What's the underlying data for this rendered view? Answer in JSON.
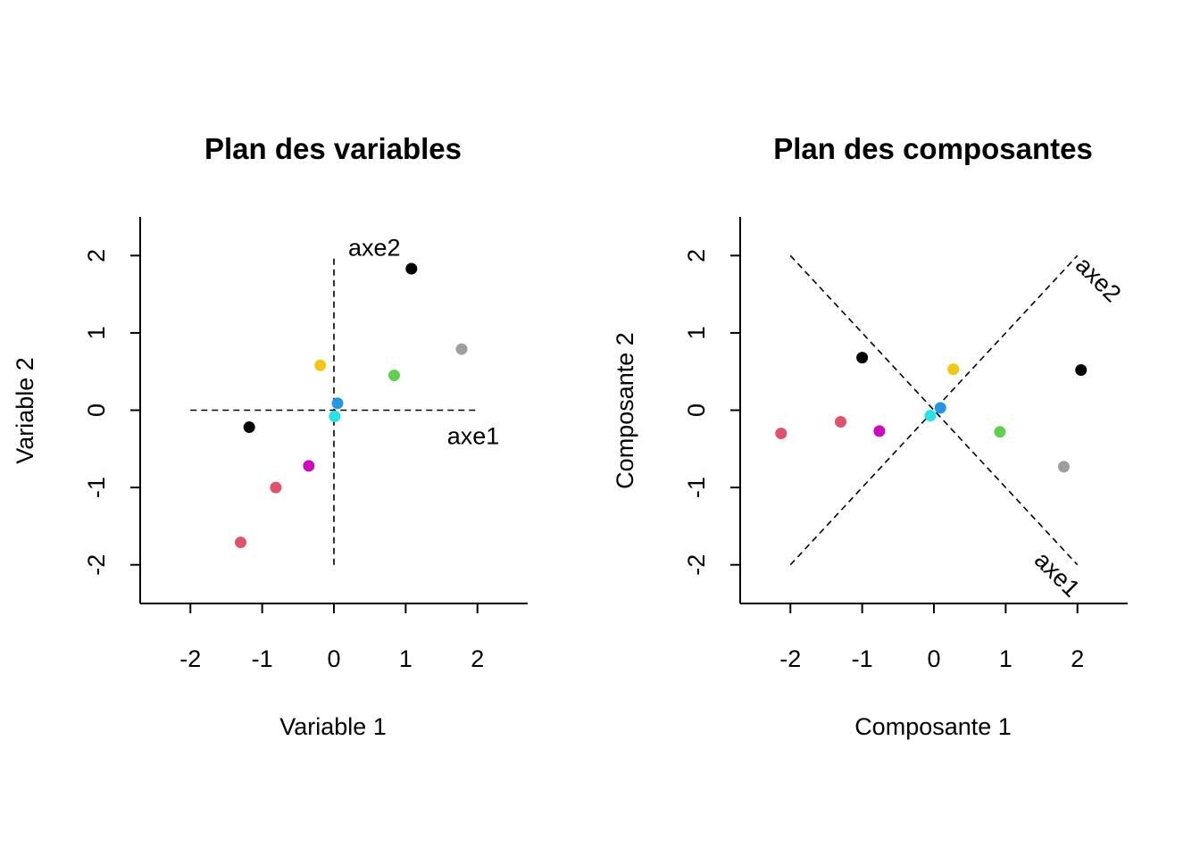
{
  "colors": {
    "black": "#000000",
    "red": "#DF536B",
    "green": "#61D04F",
    "blue": "#2297E6",
    "cyan": "#28E2E5",
    "magenta": "#CD0BBC",
    "yellow": "#F5C710",
    "gray": "#9E9E9E"
  },
  "chart_data": [
    {
      "type": "scatter",
      "title": "Plan des variables",
      "xlabel": "Variable 1",
      "ylabel": "Variable 2",
      "xlim": [
        -2.7,
        2.7
      ],
      "ylim": [
        -2.5,
        2.5
      ],
      "xticks": [
        -2,
        -1,
        0,
        1,
        2
      ],
      "yticks": [
        -2,
        -1,
        0,
        1,
        2
      ],
      "grid": false,
      "points": [
        {
          "x": 1.08,
          "y": 1.83,
          "color": "black"
        },
        {
          "x": 1.78,
          "y": 0.79,
          "color": "gray"
        },
        {
          "x": -0.19,
          "y": 0.58,
          "color": "yellow"
        },
        {
          "x": 0.84,
          "y": 0.45,
          "color": "green"
        },
        {
          "x": 0.05,
          "y": 0.09,
          "color": "blue"
        },
        {
          "x": 0.01,
          "y": -0.08,
          "color": "cyan"
        },
        {
          "x": -1.18,
          "y": -0.22,
          "color": "black"
        },
        {
          "x": -0.35,
          "y": -0.72,
          "color": "magenta"
        },
        {
          "x": -0.81,
          "y": -1.0,
          "color": "red"
        },
        {
          "x": -1.3,
          "y": -1.71,
          "color": "red"
        }
      ],
      "axes_lines": [
        {
          "label": "axe1",
          "from": [
            -2,
            0
          ],
          "to": [
            2,
            0
          ]
        },
        {
          "label": "axe2",
          "from": [
            0,
            -2
          ],
          "to": [
            0,
            2
          ]
        }
      ]
    },
    {
      "type": "scatter",
      "title": "Plan des composantes",
      "xlabel": "Composante 1",
      "ylabel": "Composante 2",
      "xlim": [
        -2.7,
        2.7
      ],
      "ylim": [
        -2.5,
        2.5
      ],
      "xticks": [
        -2,
        -1,
        0,
        1,
        2
      ],
      "yticks": [
        -2,
        -1,
        0,
        1,
        2
      ],
      "grid": false,
      "points": [
        {
          "x": -2.13,
          "y": -0.3,
          "color": "red"
        },
        {
          "x": -1.3,
          "y": -0.15,
          "color": "red"
        },
        {
          "x": -1.0,
          "y": 0.68,
          "color": "black"
        },
        {
          "x": -0.76,
          "y": -0.27,
          "color": "magenta"
        },
        {
          "x": -0.05,
          "y": -0.07,
          "color": "cyan"
        },
        {
          "x": 0.09,
          "y": 0.03,
          "color": "blue"
        },
        {
          "x": 0.27,
          "y": 0.53,
          "color": "yellow"
        },
        {
          "x": 0.92,
          "y": -0.28,
          "color": "green"
        },
        {
          "x": 1.81,
          "y": -0.73,
          "color": "gray"
        },
        {
          "x": 2.05,
          "y": 0.52,
          "color": "black"
        }
      ],
      "axes_lines": [
        {
          "label": "axe1",
          "from": [
            -2,
            2
          ],
          "to": [
            2,
            -2
          ]
        },
        {
          "label": "axe2",
          "from": [
            -2,
            -2
          ],
          "to": [
            2,
            2
          ]
        }
      ]
    }
  ]
}
